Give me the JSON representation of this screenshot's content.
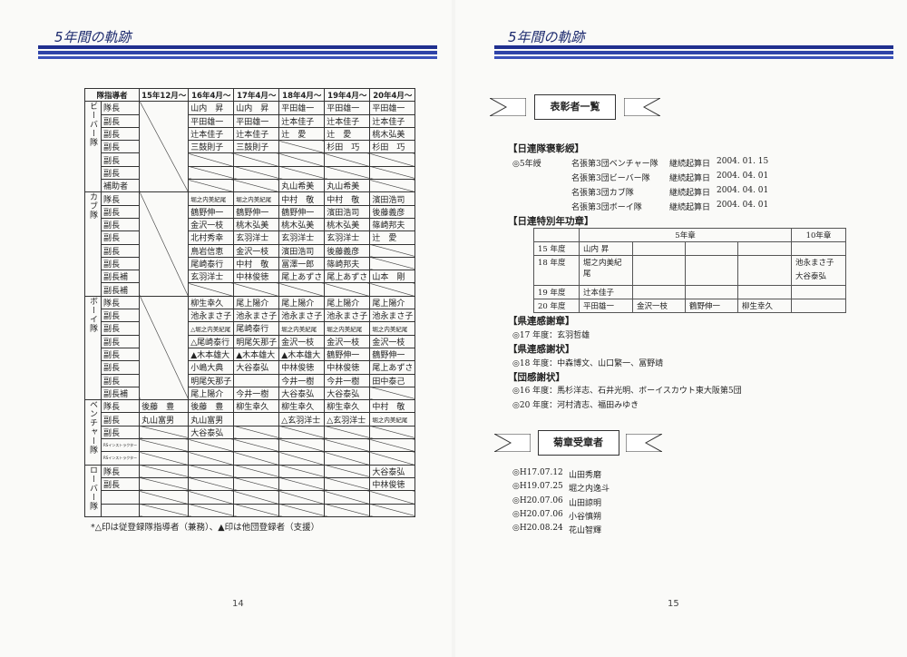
{
  "left": {
    "header_title": "5年間の軌跡",
    "corner_label": "隊指導者",
    "columns": [
      "15年12月～",
      "16年4月～",
      "17年4月～",
      "18年4月～",
      "19年4月～",
      "20年4月～"
    ],
    "groups": [
      {
        "name": "ビーバー隊",
        "merged_first": true,
        "rows": [
          {
            "role": "隊長",
            "cells": [
              null,
              "山内　昇",
              "山内　昇",
              "平田雄一",
              "平田雄一",
              "平田雄一"
            ]
          },
          {
            "role": "副長",
            "cells": [
              null,
              "平田雄一",
              "平田雄一",
              "辻本佳子",
              "辻本佳子",
              "辻本佳子"
            ]
          },
          {
            "role": "副長",
            "cells": [
              null,
              "辻本佳子",
              "辻本佳子",
              "辻　愛",
              "辻　愛",
              "桃木弘美"
            ]
          },
          {
            "role": "副長",
            "cells": [
              null,
              "三鼓則子",
              "三鼓則子",
              null,
              "杉田　巧",
              "杉田　巧"
            ]
          },
          {
            "role": "副長",
            "cells": [
              null,
              null,
              null,
              null,
              null,
              null
            ]
          },
          {
            "role": "副長",
            "cells": [
              null,
              null,
              null,
              null,
              null,
              null
            ]
          },
          {
            "role": "補助者",
            "cells": [
              null,
              null,
              null,
              "丸山希美",
              "丸山希美",
              null
            ]
          }
        ]
      },
      {
        "name": "カブ隊",
        "merged_first": true,
        "rows": [
          {
            "role": "隊長",
            "cells": [
              null,
              "堀之内美紀尾",
              "堀之内美紀尾",
              "中村　敬",
              "中村　敬",
              "濱田浩司"
            ]
          },
          {
            "role": "副長",
            "cells": [
              null,
              "鶴野伸一",
              "鶴野伸一",
              "鶴野伸一",
              "濱田浩司",
              "後藤義彦"
            ]
          },
          {
            "role": "副長",
            "cells": [
              null,
              "金沢一枝",
              "桃木弘美",
              "桃木弘美",
              "桃木弘美",
              "篠崎邦夫"
            ]
          },
          {
            "role": "副長",
            "cells": [
              null,
              "北村秀幸",
              "玄羽洋士",
              "玄羽洋士",
              "玄羽洋士",
              "辻　愛"
            ]
          },
          {
            "role": "副長",
            "cells": [
              null,
              "鳥岩信恵",
              "金沢一枝",
              "濱田浩司",
              "後藤義彦",
              null
            ]
          },
          {
            "role": "副長",
            "cells": [
              null,
              "尾崎泰行",
              "中村　敬",
              "冨澤一郎",
              "篠崎邦夫",
              null
            ]
          },
          {
            "role": "副長補",
            "cells": [
              null,
              "玄羽洋士",
              "中林俊徳",
              "尾上あずさ",
              "尾上あずさ",
              "山本　剛"
            ]
          },
          {
            "role": "副長補",
            "cells": [
              null,
              null,
              null,
              null,
              null,
              null
            ]
          }
        ]
      },
      {
        "name": "ボーイ隊",
        "merged_first": true,
        "rows": [
          {
            "role": "隊長",
            "cells": [
              null,
              "柳生幸久",
              "尾上陽介",
              "尾上陽介",
              "尾上陽介",
              "尾上陽介"
            ]
          },
          {
            "role": "副長",
            "cells": [
              null,
              "池永まさ子",
              "池永まさ子",
              "池永まさ子",
              "池永まさ子",
              "池永まさ子"
            ]
          },
          {
            "role": "副長",
            "cells": [
              null,
              "△堀之内美紀尾",
              "尾崎泰行",
              "堀之内美紀尾",
              "堀之内美紀尾",
              "堀之内美紀尾"
            ]
          },
          {
            "role": "副長",
            "cells": [
              null,
              "△尾崎泰行",
              "明尾矢那子",
              "金沢一枝",
              "金沢一枝",
              "金沢一枝"
            ]
          },
          {
            "role": "副長",
            "cells": [
              null,
              "▲木本雄大",
              "▲木本雄大",
              "▲木本雄大",
              "鶴野伸一",
              "鶴野伸一"
            ]
          },
          {
            "role": "副長",
            "cells": [
              null,
              "小嶋大典",
              "大谷泰弘",
              "中林俊徳",
              "中林俊徳",
              "尾上あずさ"
            ]
          },
          {
            "role": "副長",
            "cells": [
              null,
              "明尾矢那子",
              "",
              "今井一樹",
              "今井一樹",
              "田中泰己"
            ]
          },
          {
            "role": "副長補",
            "cells": [
              null,
              "尾上陽介",
              "今井一樹",
              "大谷泰弘",
              "大谷泰弘",
              null
            ]
          }
        ]
      },
      {
        "name": "ベンチャー隊",
        "merged_first": false,
        "rows": [
          {
            "role": "隊長",
            "cells": [
              "後藤　豊",
              "後藤　豊",
              "柳生幸久",
              "柳生幸久",
              "柳生幸久",
              "中村　敬"
            ]
          },
          {
            "role": "副長",
            "cells": [
              "丸山富男",
              "丸山富男",
              "",
              "△玄羽洋士",
              "△玄羽洋士",
              "堀之内美紀尾"
            ]
          },
          {
            "role": "副長",
            "cells": [
              null,
              "大谷泰弘",
              null,
              null,
              null,
              null
            ]
          },
          {
            "role": "RSインストラクター",
            "cells": [
              null,
              null,
              null,
              null,
              null,
              null
            ]
          },
          {
            "role": "RSインストラクター",
            "cells": [
              null,
              null,
              null,
              null,
              null,
              null
            ]
          }
        ]
      },
      {
        "name": "ローバー隊",
        "merged_first": false,
        "rows": [
          {
            "role": "隊長",
            "cells": [
              null,
              null,
              null,
              null,
              null,
              "大谷泰弘"
            ]
          },
          {
            "role": "副長",
            "cells": [
              null,
              null,
              null,
              null,
              null,
              "中林俊徳"
            ]
          },
          {
            "role": "",
            "cells": [
              null,
              null,
              null,
              null,
              null,
              null
            ]
          },
          {
            "role": "",
            "cells": [
              null,
              null,
              null,
              null,
              null,
              null
            ]
          }
        ]
      }
    ],
    "footnote": "*△印は従登録隊指導者（兼務）、▲印は他団登録者（支援）",
    "page_number": "14"
  },
  "right": {
    "header_title": "5年間の軌跡",
    "ribbon1": "表彰者一覧",
    "s1_title": "【日連隊褒彰綬】",
    "s1_mark": "◎5年綬",
    "s1_items": [
      {
        "unit": "名張第3団ベンチャー隊",
        "label": "継続起算日",
        "date": "2004. 01. 15"
      },
      {
        "unit": "名張第3団ビーバー隊",
        "label": "継続起算日",
        "date": "2004. 04. 01"
      },
      {
        "unit": "名張第3団カブ隊",
        "label": "継続起算日",
        "date": "2004. 04. 01"
      },
      {
        "unit": "名張第3団ボーイ隊",
        "label": "継続起算日",
        "date": "2004. 04. 01"
      }
    ],
    "s2_title": "【日連特別年功章】",
    "s2_table": {
      "h5": "5年章",
      "h10": "10年章",
      "rows": [
        {
          "year": "15 年度",
          "five": [
            "山内 昇",
            "",
            "",
            ""
          ],
          "ten": []
        },
        {
          "year": "18 年度",
          "five": [
            "堀之内美紀尾",
            "",
            "",
            ""
          ],
          "ten": [
            "池永まさ子",
            "大谷泰弘"
          ]
        },
        {
          "year": "19 年度",
          "five": [
            "辻本佳子",
            "",
            "",
            ""
          ],
          "ten": []
        },
        {
          "year": "20 年度",
          "five": [
            "平田雄一",
            "金沢一枝",
            "鶴野伸一",
            "柳生幸久"
          ],
          "ten": []
        }
      ]
    },
    "s3_title": "【県連感謝章】",
    "s3_lines": [
      "◎17 年度：玄羽哲雄"
    ],
    "s4_title": "【県連感謝状】",
    "s4_lines": [
      "◎18 年度：中森博文、山口繁一、冨野靖"
    ],
    "s5_title": "【団感謝状】",
    "s5_lines": [
      "◎16 年度：馬杉洋志、石井光明、ボーイスカウト東大阪第5団",
      "◎20 年度：河村清志、福田みゆき"
    ],
    "ribbon2": "菊章受章者",
    "kiku": [
      {
        "date": "◎H17.07.12",
        "name": "山田秀磨"
      },
      {
        "date": "◎H19.07.25",
        "name": "堀之内逸斗"
      },
      {
        "date": "◎H20.07.06",
        "name": "山田諒明"
      },
      {
        "date": "◎H20.07.06",
        "name": "小谷慎朔"
      },
      {
        "date": "◎H20.08.24",
        "name": "花山智輝"
      }
    ],
    "page_number": "15"
  }
}
